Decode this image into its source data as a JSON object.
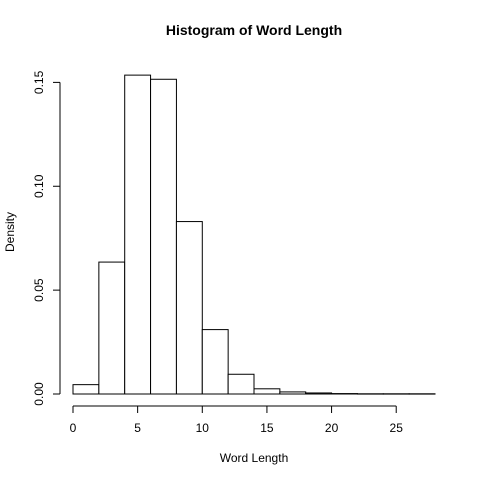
{
  "chart_data": {
    "type": "bar",
    "subtype": "histogram",
    "title": "Histogram of Word Length",
    "xlabel": "Word Length",
    "ylabel": "Density",
    "bin_edges": [
      0,
      2,
      4,
      6,
      8,
      10,
      12,
      14,
      16,
      18,
      20,
      22,
      24,
      26,
      28
    ],
    "values": [
      0.0045,
      0.0635,
      0.1535,
      0.1515,
      0.083,
      0.031,
      0.0095,
      0.0025,
      0.001,
      0.0005,
      0.0002,
      0.0001,
      0.0001,
      0.0001
    ],
    "xlim": [
      0,
      28
    ],
    "ylim": [
      0,
      0.155
    ],
    "x_ticks": [
      0,
      5,
      10,
      15,
      20,
      25
    ],
    "x_tick_labels": [
      "0",
      "5",
      "10",
      "15",
      "20",
      "25"
    ],
    "y_ticks": [
      0,
      0.05,
      0.1,
      0.15
    ],
    "y_tick_labels": [
      "0.00",
      "0.05",
      "0.10",
      "0.15"
    ],
    "grid": false,
    "bar_fill": "#ffffff",
    "bar_stroke": "#000000"
  }
}
